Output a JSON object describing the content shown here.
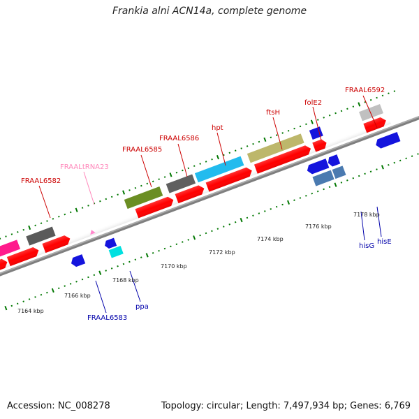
{
  "title": "Frankia alni ACN14a, complete genome",
  "footer": {
    "accession": "Accession: NC_008278",
    "summary": "Topology: circular; Length: 7,497,934 bp; Genes: 6,769"
  },
  "colors": {
    "background": "#ffffff",
    "backbone": "#808080",
    "top_label": "#cc0000",
    "bottom_label": "#0000aa",
    "trna_label": "#ff88bb",
    "tick_marks": "#007700"
  },
  "scale_labels": [
    "7164 kbp",
    "7166 kbp",
    "7168 kbp",
    "7170 kbp",
    "7172 kbp",
    "7174 kbp",
    "7176 kbp",
    "7178 kbp"
  ],
  "top_labels": [
    "FRAAL6582",
    "FRAALtRNA23",
    "FRAAL6585",
    "FRAAL6586",
    "hpt",
    "ftsH",
    "folE2",
    "FRAAL6592"
  ],
  "bottom_labels": [
    "FRAAL6583",
    "ppa",
    "hisG",
    "hisE"
  ]
}
